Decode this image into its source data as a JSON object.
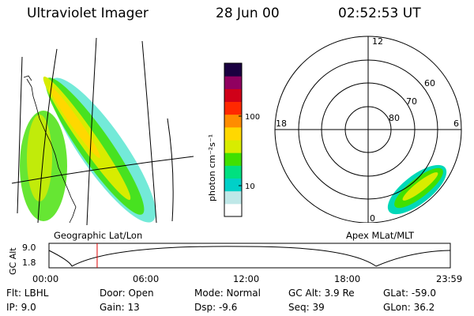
{
  "header": {
    "instrument": "Ultraviolet Imager",
    "date": "28 Jun 00",
    "time": "02:52:53 UT"
  },
  "geo_panel": {
    "caption": "Geographic Lat/Lon"
  },
  "colorbar": {
    "unit_label": "photon cm⁻²s⁻¹",
    "tick_labels": [
      "100",
      "10"
    ],
    "scale": "log",
    "colors": [
      "#ffffff",
      "#bfe8e8",
      "#00d0c8",
      "#00e080",
      "#40e000",
      "#d8ec00",
      "#ffd800",
      "#ff8c00",
      "#ff2800",
      "#d00018",
      "#900060",
      "#1a0040"
    ]
  },
  "polar_panel": {
    "caption": "Apex MLat/MLT",
    "mlt_labels": [
      "12",
      "18",
      "6",
      "0"
    ],
    "lat_labels": [
      "60",
      "70",
      "80"
    ]
  },
  "altitude_plot": {
    "y_label": "GC Alt",
    "y_ticks": [
      "9.0",
      "1.8"
    ],
    "x_ticks": [
      "00:00",
      "06:00",
      "12:00",
      "18:00",
      "23:59"
    ],
    "current_time_hours": 2.88
  },
  "info": {
    "flt": "Flt: LBHL",
    "ip": "IP:  9.0",
    "door": "Door: Open",
    "gain": "Gain: 13",
    "mode": "Mode: Normal",
    "dsp": "Dsp:   -9.6",
    "gc_alt": "GC Alt: 3.9 Re",
    "seq": "Seq: 39",
    "glat": "GLat: -59.0",
    "glon": "GLon:  36.2"
  }
}
